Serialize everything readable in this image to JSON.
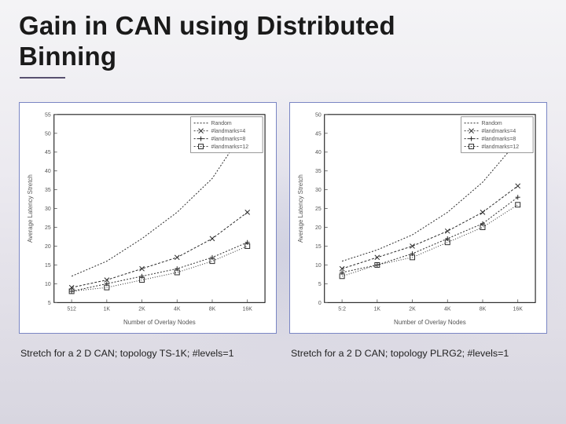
{
  "title_line1": "Gain in CAN using Distributed",
  "title_line2": "Binning",
  "left_chart": {
    "type": "line",
    "caption": "Stretch for a 2 D CAN; topology TS-1K; #levels=1",
    "xlabel": "Number of Overlay Nodes",
    "ylabel": "Average Latency Stretch",
    "background_color": "#ffffff",
    "border_color": "#000000",
    "axis_color": "#555555",
    "label_fontsize": 8,
    "tick_fontsize": 7,
    "x_categories": [
      "512",
      "1K",
      "2K",
      "4K",
      "8K",
      "16K"
    ],
    "ylim": [
      5,
      55
    ],
    "ytick_step": 5,
    "legend": {
      "position": "top-right",
      "entries": [
        {
          "label": "Random",
          "marker": "none"
        },
        {
          "label": "#landmarks=4",
          "marker": "x"
        },
        {
          "label": "#landmarks=8",
          "marker": "plus"
        },
        {
          "label": "#landmarks=12",
          "marker": "square"
        }
      ],
      "fontsize": 7
    },
    "series": [
      {
        "name": "Random",
        "marker": "none",
        "stroke": "#2a2a2a",
        "dash": "2 2",
        "width": 1.0,
        "values": [
          12,
          16,
          22,
          29,
          38,
          52
        ]
      },
      {
        "name": "#landmarks=4",
        "marker": "x",
        "stroke": "#2a2a2a",
        "dash": "3 2",
        "width": 1.0,
        "values": [
          9,
          11,
          14,
          17,
          22,
          29
        ]
      },
      {
        "name": "#landmarks=8",
        "marker": "plus",
        "stroke": "#2a2a2a",
        "dash": "2 2",
        "width": 1.0,
        "values": [
          8,
          10,
          12,
          14,
          17,
          21
        ]
      },
      {
        "name": "#landmarks=12",
        "marker": "square",
        "stroke": "#2a2a2a",
        "dash": "1 2",
        "width": 1.0,
        "values": [
          8,
          9,
          11,
          13,
          16,
          20
        ]
      }
    ]
  },
  "right_chart": {
    "type": "line",
    "caption": "Stretch for a 2 D CAN; topology PLRG2; #levels=1",
    "xlabel": "Number of Overlay Nodes",
    "ylabel": "Average Latency Stretch",
    "background_color": "#ffffff",
    "border_color": "#000000",
    "axis_color": "#555555",
    "label_fontsize": 8,
    "tick_fontsize": 7,
    "x_categories": [
      "5:2",
      "1K",
      "2K",
      "4K",
      "8K",
      "16K"
    ],
    "ylim": [
      0,
      50
    ],
    "ytick_step": 5,
    "legend": {
      "position": "top-right",
      "entries": [
        {
          "label": "Random",
          "marker": "none"
        },
        {
          "label": "#landmarks=4",
          "marker": "x"
        },
        {
          "label": "#landmarks=8",
          "marker": "plus"
        },
        {
          "label": "#landmarks=12",
          "marker": "square"
        }
      ],
      "fontsize": 7
    },
    "series": [
      {
        "name": "Random",
        "marker": "none",
        "stroke": "#2a2a2a",
        "dash": "2 2",
        "width": 1.0,
        "values": [
          11,
          14,
          18,
          24,
          32,
          43
        ]
      },
      {
        "name": "#landmarks=4",
        "marker": "x",
        "stroke": "#2a2a2a",
        "dash": "3 2",
        "width": 1.0,
        "values": [
          9,
          12,
          15,
          19,
          24,
          31
        ]
      },
      {
        "name": "#landmarks=8",
        "marker": "plus",
        "stroke": "#2a2a2a",
        "dash": "2 2",
        "width": 1.0,
        "values": [
          8,
          10,
          13,
          17,
          21,
          28
        ]
      },
      {
        "name": "#landmarks=12",
        "marker": "square",
        "stroke": "#2a2a2a",
        "dash": "1 2",
        "width": 1.0,
        "values": [
          7,
          10,
          12,
          16,
          20,
          26
        ]
      }
    ]
  }
}
